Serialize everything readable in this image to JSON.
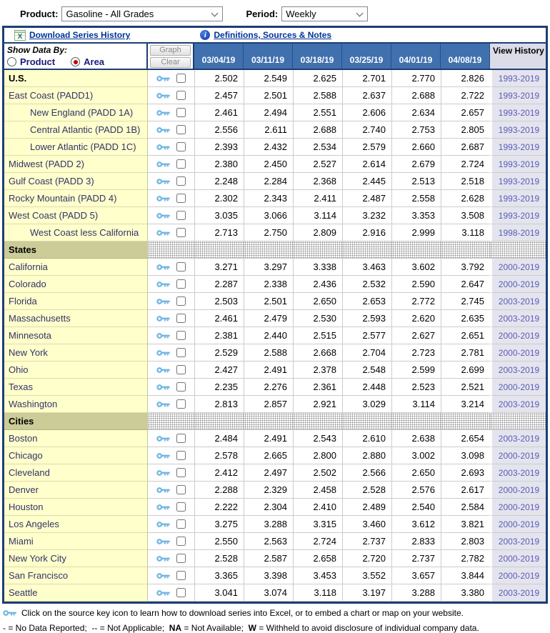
{
  "controls": {
    "product_label": "Product:",
    "product_value": "Gasoline - All Grades",
    "period_label": "Period:",
    "period_value": "Weekly"
  },
  "toolbar": {
    "download_label": "Download Series History",
    "definitions_label": "Definitions, Sources & Notes"
  },
  "table": {
    "show_data_by": "Show Data By:",
    "radio_product": "Product",
    "radio_area": "Area",
    "selected_radio": "Area",
    "graph_button": "Graph",
    "clear_button": "Clear",
    "date_headers": [
      "03/04/19",
      "03/11/19",
      "03/18/19",
      "03/25/19",
      "04/01/19",
      "04/08/19"
    ],
    "view_history_header": "View History",
    "rows": [
      {
        "type": "data",
        "label": "U.S.",
        "bold": true,
        "indent": false,
        "values": [
          "2.502",
          "2.549",
          "2.625",
          "2.701",
          "2.770",
          "2.826"
        ],
        "history": "1993-2019"
      },
      {
        "type": "data",
        "label": "East Coast (PADD1)",
        "bold": false,
        "indent": false,
        "values": [
          "2.457",
          "2.501",
          "2.588",
          "2.637",
          "2.688",
          "2.722"
        ],
        "history": "1993-2019"
      },
      {
        "type": "data",
        "label": "New England (PADD 1A)",
        "bold": false,
        "indent": true,
        "values": [
          "2.461",
          "2.494",
          "2.551",
          "2.606",
          "2.634",
          "2.657"
        ],
        "history": "1993-2019"
      },
      {
        "type": "data",
        "label": "Central Atlantic (PADD 1B)",
        "bold": false,
        "indent": true,
        "values": [
          "2.556",
          "2.611",
          "2.688",
          "2.740",
          "2.753",
          "2.805"
        ],
        "history": "1993-2019"
      },
      {
        "type": "data",
        "label": "Lower Atlantic (PADD 1C)",
        "bold": false,
        "indent": true,
        "values": [
          "2.393",
          "2.432",
          "2.534",
          "2.579",
          "2.660",
          "2.687"
        ],
        "history": "1993-2019"
      },
      {
        "type": "data",
        "label": "Midwest (PADD 2)",
        "bold": false,
        "indent": false,
        "values": [
          "2.380",
          "2.450",
          "2.527",
          "2.614",
          "2.679",
          "2.724"
        ],
        "history": "1993-2019"
      },
      {
        "type": "data",
        "label": "Gulf Coast (PADD 3)",
        "bold": false,
        "indent": false,
        "values": [
          "2.248",
          "2.284",
          "2.368",
          "2.445",
          "2.513",
          "2.518"
        ],
        "history": "1993-2019"
      },
      {
        "type": "data",
        "label": "Rocky Mountain (PADD 4)",
        "bold": false,
        "indent": false,
        "values": [
          "2.302",
          "2.343",
          "2.411",
          "2.487",
          "2.558",
          "2.628"
        ],
        "history": "1993-2019"
      },
      {
        "type": "data",
        "label": "West Coast (PADD 5)",
        "bold": false,
        "indent": false,
        "values": [
          "3.035",
          "3.066",
          "3.114",
          "3.232",
          "3.353",
          "3.508"
        ],
        "history": "1993-2019"
      },
      {
        "type": "data",
        "label": "West Coast less California",
        "bold": false,
        "indent": true,
        "values": [
          "2.713",
          "2.750",
          "2.809",
          "2.916",
          "2.999",
          "3.118"
        ],
        "history": "1998-2019"
      },
      {
        "type": "section",
        "label": "States"
      },
      {
        "type": "data",
        "label": "California",
        "bold": false,
        "indent": false,
        "values": [
          "3.271",
          "3.297",
          "3.338",
          "3.463",
          "3.602",
          "3.792"
        ],
        "history": "2000-2019"
      },
      {
        "type": "data",
        "label": "Colorado",
        "bold": false,
        "indent": false,
        "values": [
          "2.287",
          "2.338",
          "2.436",
          "2.532",
          "2.590",
          "2.647"
        ],
        "history": "2000-2019"
      },
      {
        "type": "data",
        "label": "Florida",
        "bold": false,
        "indent": false,
        "values": [
          "2.503",
          "2.501",
          "2.650",
          "2.653",
          "2.772",
          "2.745"
        ],
        "history": "2003-2019"
      },
      {
        "type": "data",
        "label": "Massachusetts",
        "bold": false,
        "indent": false,
        "values": [
          "2.461",
          "2.479",
          "2.530",
          "2.593",
          "2.620",
          "2.635"
        ],
        "history": "2003-2019"
      },
      {
        "type": "data",
        "label": "Minnesota",
        "bold": false,
        "indent": false,
        "values": [
          "2.381",
          "2.440",
          "2.515",
          "2.577",
          "2.627",
          "2.651"
        ],
        "history": "2000-2019"
      },
      {
        "type": "data",
        "label": "New York",
        "bold": false,
        "indent": false,
        "values": [
          "2.529",
          "2.588",
          "2.668",
          "2.704",
          "2.723",
          "2.781"
        ],
        "history": "2000-2019"
      },
      {
        "type": "data",
        "label": "Ohio",
        "bold": false,
        "indent": false,
        "values": [
          "2.427",
          "2.491",
          "2.378",
          "2.548",
          "2.599",
          "2.699"
        ],
        "history": "2003-2019"
      },
      {
        "type": "data",
        "label": "Texas",
        "bold": false,
        "indent": false,
        "values": [
          "2.235",
          "2.276",
          "2.361",
          "2.448",
          "2.523",
          "2.521"
        ],
        "history": "2000-2019"
      },
      {
        "type": "data",
        "label": "Washington",
        "bold": false,
        "indent": false,
        "values": [
          "2.813",
          "2.857",
          "2.921",
          "3.029",
          "3.114",
          "3.214"
        ],
        "history": "2003-2019"
      },
      {
        "type": "section",
        "label": "Cities"
      },
      {
        "type": "data",
        "label": "Boston",
        "bold": false,
        "indent": false,
        "values": [
          "2.484",
          "2.491",
          "2.543",
          "2.610",
          "2.638",
          "2.654"
        ],
        "history": "2003-2019"
      },
      {
        "type": "data",
        "label": "Chicago",
        "bold": false,
        "indent": false,
        "values": [
          "2.578",
          "2.665",
          "2.800",
          "2.880",
          "3.002",
          "3.098"
        ],
        "history": "2000-2019"
      },
      {
        "type": "data",
        "label": "Cleveland",
        "bold": false,
        "indent": false,
        "values": [
          "2.412",
          "2.497",
          "2.502",
          "2.566",
          "2.650",
          "2.693"
        ],
        "history": "2003-2019"
      },
      {
        "type": "data",
        "label": "Denver",
        "bold": false,
        "indent": false,
        "values": [
          "2.288",
          "2.329",
          "2.458",
          "2.528",
          "2.576",
          "2.617"
        ],
        "history": "2000-2019"
      },
      {
        "type": "data",
        "label": "Houston",
        "bold": false,
        "indent": false,
        "values": [
          "2.222",
          "2.304",
          "2.410",
          "2.489",
          "2.540",
          "2.584"
        ],
        "history": "2000-2019"
      },
      {
        "type": "data",
        "label": "Los Angeles",
        "bold": false,
        "indent": false,
        "values": [
          "3.275",
          "3.288",
          "3.315",
          "3.460",
          "3.612",
          "3.821"
        ],
        "history": "2000-2019"
      },
      {
        "type": "data",
        "label": "Miami",
        "bold": false,
        "indent": false,
        "values": [
          "2.550",
          "2.563",
          "2.724",
          "2.737",
          "2.833",
          "2.803"
        ],
        "history": "2003-2019"
      },
      {
        "type": "data",
        "label": "New York City",
        "bold": false,
        "indent": false,
        "values": [
          "2.528",
          "2.587",
          "2.658",
          "2.720",
          "2.737",
          "2.782"
        ],
        "history": "2000-2019"
      },
      {
        "type": "data",
        "label": "San Francisco",
        "bold": false,
        "indent": false,
        "values": [
          "3.365",
          "3.398",
          "3.453",
          "3.552",
          "3.657",
          "3.844"
        ],
        "history": "2000-2019"
      },
      {
        "type": "data",
        "label": "Seattle",
        "bold": false,
        "indent": false,
        "values": [
          "3.041",
          "3.074",
          "3.118",
          "3.197",
          "3.288",
          "3.380"
        ],
        "history": "2003-2019"
      }
    ]
  },
  "footnotes": {
    "source_key_note": "Click on the source key icon to learn how to download series into Excel, or to embed a chart or map on your website.",
    "legend_parts": [
      {
        "text": "- = No Data Reported;  -- = Not Applicable;  ",
        "bold": false
      },
      {
        "text": "NA",
        "bold": true
      },
      {
        "text": " = Not Available;  ",
        "bold": false
      },
      {
        "text": "W",
        "bold": true
      },
      {
        "text": " = Withheld to avoid disclosure of individual company data.",
        "bold": false
      }
    ]
  },
  "colors": {
    "frame_navy": "#1c3e74",
    "header_blue": "#4070ad",
    "label_yellow": "#ffffcc",
    "section_olive": "#cccc99",
    "history_bg": "#e4e4ee",
    "history_link": "#5b5bb7",
    "link_navy": "#003399",
    "radio_selected": "#c00000",
    "key_icon_blue": "#72b6e4"
  }
}
